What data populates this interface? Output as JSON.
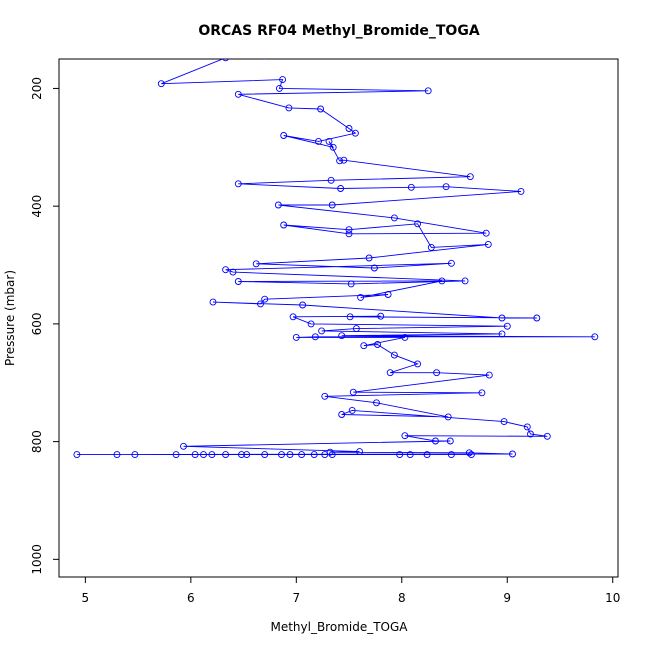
{
  "chart_data": {
    "type": "line",
    "title": "ORCAS RF04 Methyl_Bromide_TOGA",
    "xlabel": "Methyl_Bromide_TOGA",
    "ylabel": "Pressure (mbar)",
    "xlim": [
      4.75,
      10.05
    ],
    "ylim": [
      1030,
      150
    ],
    "y_inverted": true,
    "x_ticks": [
      5,
      6,
      7,
      8,
      9,
      10
    ],
    "y_ticks": [
      200,
      400,
      600,
      800,
      1000
    ],
    "grid": false,
    "color": "#0000ff",
    "series": [
      {
        "marker": "open-circle",
        "points": [
          [
            6.7,
            145
          ],
          [
            6.33,
            148
          ],
          [
            5.72,
            192
          ],
          [
            6.87,
            185
          ],
          [
            6.84,
            200
          ],
          [
            8.25,
            204
          ],
          [
            6.45,
            210
          ],
          [
            6.93,
            233
          ],
          [
            7.23,
            235
          ],
          [
            7.5,
            268
          ],
          [
            7.56,
            276
          ],
          [
            7.21,
            290
          ],
          [
            6.88,
            280
          ],
          [
            7.35,
            300
          ],
          [
            7.31,
            290
          ],
          [
            7.41,
            323
          ],
          [
            7.45,
            322
          ],
          [
            8.65,
            350
          ],
          [
            7.33,
            356
          ],
          [
            6.45,
            362
          ],
          [
            7.42,
            370
          ],
          [
            8.09,
            368
          ],
          [
            8.42,
            367
          ],
          [
            9.13,
            375
          ],
          [
            7.34,
            398
          ],
          [
            6.83,
            398
          ],
          [
            7.93,
            420
          ],
          [
            8.8,
            446
          ],
          [
            7.5,
            447
          ],
          [
            6.88,
            432
          ],
          [
            7.5,
            440
          ],
          [
            8.15,
            430
          ],
          [
            8.28,
            470
          ],
          [
            8.82,
            465
          ],
          [
            7.69,
            488
          ],
          [
            6.62,
            498
          ],
          [
            7.74,
            505
          ],
          [
            8.47,
            497
          ],
          [
            6.33,
            508
          ],
          [
            6.4,
            512
          ],
          [
            8.6,
            527
          ],
          [
            7.52,
            532
          ],
          [
            6.45,
            528
          ],
          [
            8.38,
            527
          ],
          [
            7.61,
            555
          ],
          [
            7.87,
            550
          ],
          [
            6.7,
            558
          ],
          [
            6.66,
            566
          ],
          [
            6.21,
            563
          ],
          [
            7.06,
            568
          ],
          [
            8.95,
            590
          ],
          [
            9.28,
            590
          ],
          [
            7.51,
            588
          ],
          [
            7.8,
            587
          ],
          [
            6.97,
            588
          ],
          [
            7.14,
            600
          ],
          [
            9.0,
            604
          ],
          [
            7.57,
            608
          ],
          [
            7.24,
            612
          ],
          [
            8.95,
            617
          ],
          [
            7.43,
            620
          ],
          [
            9.83,
            622
          ],
          [
            7.18,
            622
          ],
          [
            7.0,
            623
          ],
          [
            8.03,
            623
          ],
          [
            7.64,
            637
          ],
          [
            7.77,
            635
          ],
          [
            7.93,
            653
          ],
          [
            8.15,
            668
          ],
          [
            7.89,
            683
          ],
          [
            8.33,
            683
          ],
          [
            8.83,
            687
          ],
          [
            7.54,
            716
          ],
          [
            8.76,
            717
          ],
          [
            7.27,
            723
          ],
          [
            7.76,
            734
          ],
          [
            8.44,
            758
          ],
          [
            7.43,
            754
          ],
          [
            7.53,
            747
          ],
          [
            8.97,
            766
          ],
          [
            9.19,
            775
          ],
          [
            9.22,
            787
          ],
          [
            9.38,
            791
          ],
          [
            8.03,
            790
          ],
          [
            8.32,
            799
          ],
          [
            8.46,
            799
          ],
          [
            5.93,
            808
          ],
          [
            7.6,
            817
          ],
          [
            7.32,
            818
          ],
          [
            8.64,
            819
          ],
          [
            9.05,
            821
          ],
          [
            4.92,
            822
          ],
          [
            5.3,
            822
          ],
          [
            5.47,
            822
          ],
          [
            5.86,
            822
          ],
          [
            6.04,
            822
          ],
          [
            6.12,
            822
          ],
          [
            6.2,
            822
          ],
          [
            6.33,
            822
          ],
          [
            6.48,
            822
          ],
          [
            6.53,
            822
          ],
          [
            6.7,
            822
          ],
          [
            6.86,
            822
          ],
          [
            6.94,
            822
          ],
          [
            7.05,
            822
          ],
          [
            7.17,
            822
          ],
          [
            7.27,
            822
          ],
          [
            7.34,
            822
          ],
          [
            7.98,
            822
          ],
          [
            8.08,
            822
          ],
          [
            8.24,
            822
          ],
          [
            8.47,
            822
          ],
          [
            8.66,
            822
          ]
        ]
      }
    ]
  }
}
